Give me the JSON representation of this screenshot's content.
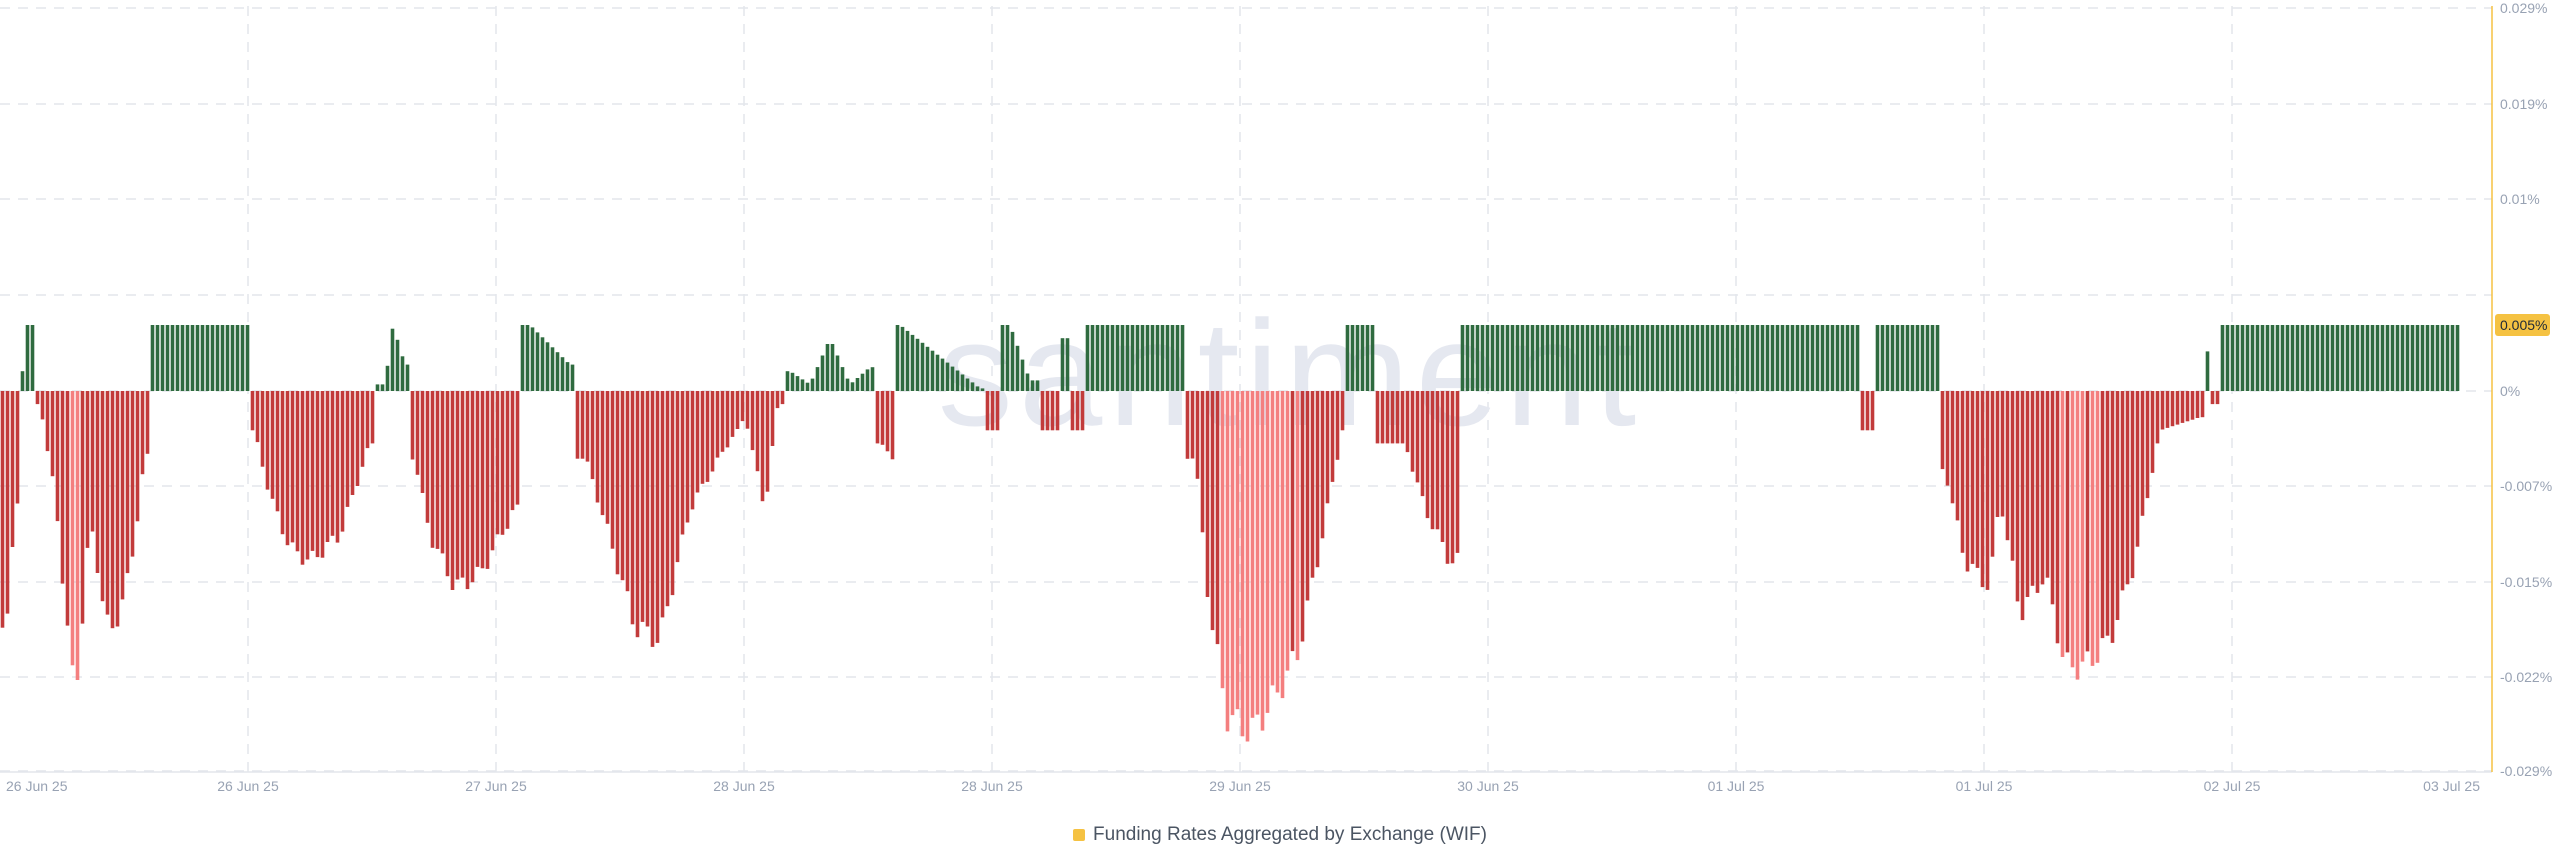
{
  "watermark": "santiment",
  "legend": {
    "label": "Funding Rates Aggregated by Exchange (WIF)",
    "color": "#f5c242"
  },
  "colors": {
    "positive": "#2f6b3f",
    "negative_dark": "#c23b3b",
    "negative_light": "#f47f7f",
    "axis_line": "#f5c242",
    "grid": "#e3e6ec",
    "tick_text": "#98a2b3",
    "badge_fill": "#f5c242",
    "badge_text": "#1f2937",
    "watermark": "#e5e8f0"
  },
  "chart_data": {
    "type": "bar",
    "title": "",
    "xlabel": "",
    "ylabel": "",
    "x_tick_labels": [
      "26 Jun 25",
      "26 Jun 25",
      "27 Jun 25",
      "28 Jun 25",
      "28 Jun 25",
      "29 Jun 25",
      "30 Jun 25",
      "01 Jul 25",
      "01 Jul 25",
      "02 Jul 25",
      "03 Jul 25"
    ],
    "y_tick_labels": [
      "0.029%",
      "0.019%",
      "0.01%",
      "0.005%",
      "0%",
      "-0.007%",
      "-0.015%",
      "-0.022%",
      "-0.029%"
    ],
    "highlighted_value": "0.005%",
    "ylim": [
      -0.029,
      0.029
    ],
    "grid": true,
    "legend_position": "bottom-center",
    "series": [
      {
        "name": "Funding Rates Aggregated by Exchange (WIF)",
        "unit": "%",
        "segments": [
          [
            0,
            -0.019
          ],
          [
            8,
            -0.016
          ],
          [
            16,
            -0.009
          ],
          [
            22,
            0.001
          ],
          [
            26,
            0.005
          ],
          [
            40,
            -0.001
          ],
          [
            55,
            -0.008
          ],
          [
            65,
            -0.016
          ],
          [
            75,
            -0.024
          ],
          [
            90,
            -0.01
          ],
          [
            110,
            -0.019
          ],
          [
            130,
            -0.014
          ],
          [
            145,
            -0.005
          ],
          [
            152,
            0.005
          ],
          [
            250,
            0.005
          ],
          [
            254,
            -0.003
          ],
          [
            270,
            -0.008
          ],
          [
            290,
            -0.012
          ],
          [
            310,
            -0.013
          ],
          [
            340,
            -0.011
          ],
          [
            370,
            -0.004
          ],
          [
            385,
            0.0005
          ],
          [
            393,
            0.005
          ],
          [
            405,
            0.002
          ],
          [
            414,
            -0.005
          ],
          [
            430,
            -0.011
          ],
          [
            455,
            -0.015
          ],
          [
            480,
            -0.014
          ],
          [
            515,
            -0.009
          ],
          [
            530,
            0.005
          ],
          [
            570,
            0.002
          ],
          [
            585,
            -0.005
          ],
          [
            605,
            -0.01
          ],
          [
            635,
            -0.018
          ],
          [
            660,
            -0.019
          ],
          [
            690,
            -0.009
          ],
          [
            720,
            -0.005
          ],
          [
            745,
            -0.002
          ],
          [
            765,
            -0.009
          ],
          [
            778,
            -0.001
          ],
          [
            790,
            0.0015
          ],
          [
            810,
            0.0005
          ],
          [
            830,
            0.004
          ],
          [
            850,
            0.0005
          ],
          [
            870,
            0.0018
          ],
          [
            880,
            -0.004
          ],
          [
            890,
            -0.005
          ],
          [
            900,
            0.005
          ],
          [
            980,
            0.0002
          ],
          [
            995,
            -0.003
          ],
          [
            1010,
            0.005
          ],
          [
            1030,
            0.0008
          ],
          [
            1052,
            -0.003
          ],
          [
            1066,
            0.004
          ],
          [
            1076,
            -0.003
          ],
          [
            1090,
            0.005
          ],
          [
            1180,
            0.005
          ],
          [
            1195,
            -0.005
          ],
          [
            1210,
            -0.017
          ],
          [
            1228,
            -0.025
          ],
          [
            1252,
            -0.026
          ],
          [
            1278,
            -0.023
          ],
          [
            1298,
            -0.02
          ],
          [
            1320,
            -0.012
          ],
          [
            1345,
            -0.002
          ],
          [
            1350,
            0.005
          ],
          [
            1405,
            -0.004
          ],
          [
            1425,
            -0.009
          ],
          [
            1450,
            -0.013
          ],
          [
            1466,
            0.005
          ],
          [
            1850,
            0.005
          ],
          [
            1868,
            -0.003
          ],
          [
            1885,
            0.005
          ],
          [
            1935,
            0.005
          ],
          [
            1945,
            -0.006
          ],
          [
            1965,
            -0.013
          ],
          [
            1990,
            -0.015
          ],
          [
            2000,
            -0.008
          ],
          [
            2020,
            -0.017
          ],
          [
            2045,
            -0.014
          ],
          [
            2065,
            -0.021
          ],
          [
            2085,
            -0.021
          ],
          [
            2110,
            -0.019
          ],
          [
            2135,
            -0.013
          ],
          [
            2160,
            -0.003
          ],
          [
            2200,
            -0.002
          ],
          [
            2208,
            0.003
          ],
          [
            2215,
            -0.001
          ],
          [
            2222,
            0.005
          ],
          [
            2460,
            0.005
          ]
        ]
      }
    ]
  }
}
